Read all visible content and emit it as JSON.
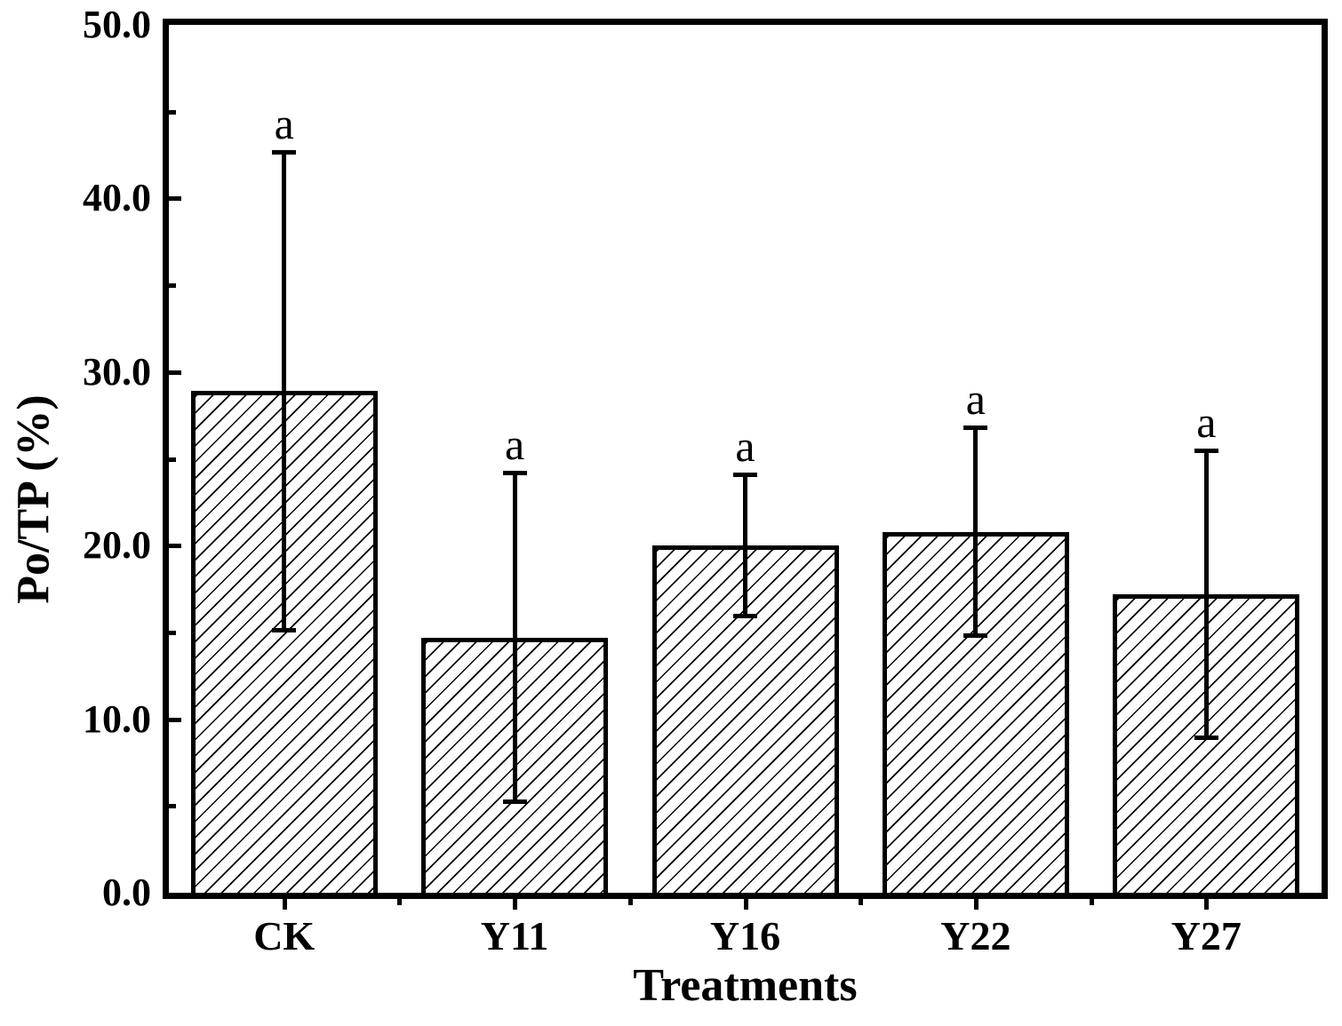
{
  "chart_data": {
    "type": "bar",
    "title": "",
    "xlabel": "Treatments",
    "ylabel": "Po/TP (%)",
    "categories": [
      "CK",
      "Y11",
      "Y16",
      "Y22",
      "Y27"
    ],
    "values": [
      28.9,
      14.7,
      20.0,
      20.8,
      17.2
    ],
    "errors": [
      13.8,
      9.5,
      4.1,
      6.0,
      8.3
    ],
    "error_upper": [
      42.7,
      24.2,
      24.1,
      26.8,
      25.5
    ],
    "error_lower": [
      15.1,
      5.2,
      15.9,
      14.8,
      8.9
    ],
    "sig_labels": [
      "a",
      "a",
      "a",
      "a",
      "a"
    ],
    "ylim": [
      0,
      50
    ],
    "y_major_values": [
      0,
      10,
      20,
      30,
      40,
      50
    ],
    "y_major_ticks": [
      "0.0",
      "10.0",
      "20.0",
      "30.0",
      "40.0",
      "50.0"
    ],
    "y_minor_values": [
      5,
      15,
      25,
      35,
      45
    ],
    "grid": "off",
    "legend": "none",
    "bar_fill": "diagonal-hatch",
    "ink_color": "#000000",
    "background_color": "#ffffff"
  }
}
